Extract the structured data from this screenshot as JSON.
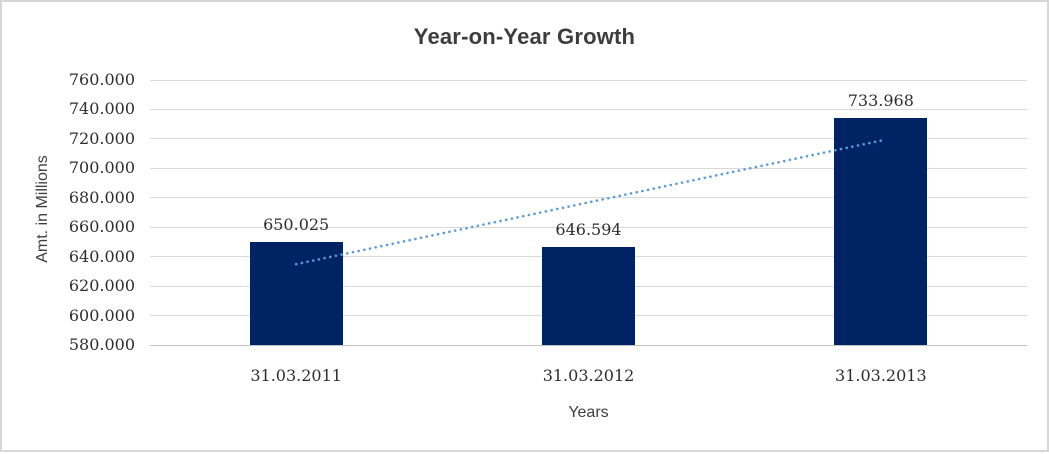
{
  "frame": {
    "background": "#ffffff",
    "border_color": "#d7d7d7"
  },
  "chart_data": {
    "type": "bar",
    "title": "Year-on-Year Growth",
    "xlabel": "Years",
    "ylabel": "Amt. in Millions",
    "categories": [
      "31.03.2011",
      "31.03.2012",
      "31.03.2013"
    ],
    "values": [
      650.025,
      646.594,
      733.968
    ],
    "data_labels": [
      "650.025",
      "646.594",
      "733.968"
    ],
    "ylim": [
      580,
      760
    ],
    "ytick_step": 20,
    "ytick_labels": [
      "760.000",
      "740.000",
      "720.000",
      "700.000",
      "680.000",
      "660.000",
      "640.000",
      "620.000",
      "600.000",
      "580.000"
    ],
    "grid": true,
    "legend": "none",
    "bar_color": "#002364",
    "gridline_color": "#d9d9d9",
    "axis_line_color": "#c3c3c3",
    "label_color": "#2e2e2e",
    "title_color": "#3d3d3d",
    "trendline": {
      "type": "linear",
      "style": "dotted",
      "color": "#5b9bd5",
      "start_value": 634.9,
      "end_value": 718.8
    }
  }
}
